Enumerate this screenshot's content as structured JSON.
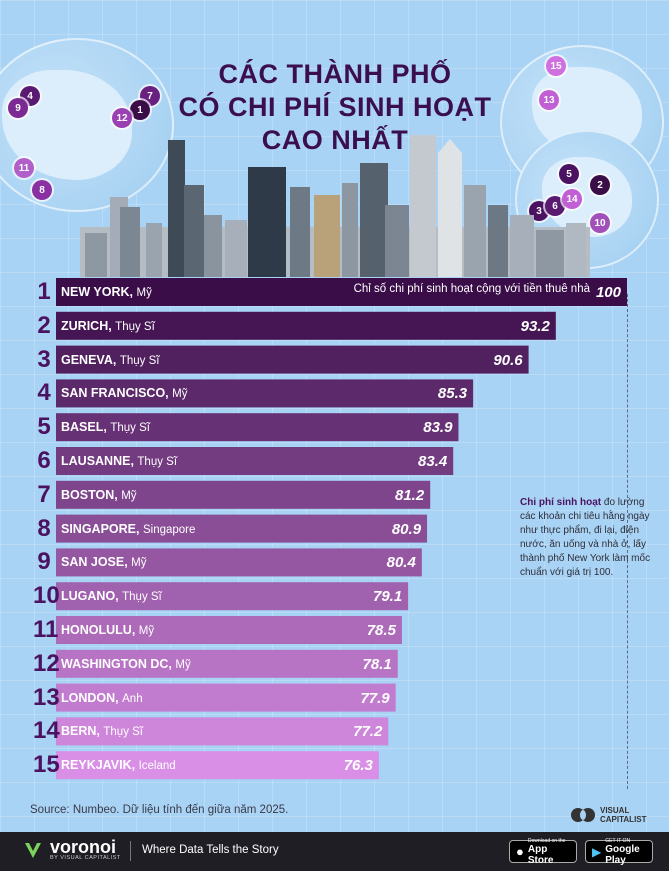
{
  "title_lines": [
    "CÁC THÀNH PHỐ",
    "CÓ CHI PHÍ SINH HOẠT",
    "CAO NHẤT"
  ],
  "colors": {
    "accent": "#4b1260",
    "background": "#a9d3f4",
    "bar_dark": "#3a0d48",
    "bar_light": "#d98fe6"
  },
  "map_pins": [
    "4",
    "9",
    "7",
    "1",
    "12",
    "11",
    "8",
    "15",
    "13",
    "5",
    "2",
    "3",
    "6",
    "14",
    "10"
  ],
  "chart_data": {
    "type": "bar",
    "orientation": "horizontal",
    "value_label": "Chỉ số chi phí sinh hoạt cộng với tiền thuê nhà",
    "reference_value": 100,
    "items": [
      {
        "rank": "1",
        "city": "NEW YORK",
        "country": "Mỹ",
        "value": 100,
        "value_label": "100"
      },
      {
        "rank": "2",
        "city": "ZURICH",
        "country": "Thụy Sĩ",
        "value": 93.2,
        "value_label": "93.2"
      },
      {
        "rank": "3",
        "city": "GENEVA",
        "country": "Thụy Sĩ",
        "value": 90.6,
        "value_label": "90.6"
      },
      {
        "rank": "4",
        "city": "SAN FRANCISCO",
        "country": "Mỹ",
        "value": 85.3,
        "value_label": "85.3"
      },
      {
        "rank": "5",
        "city": "BASEL",
        "country": "Thụy Sĩ",
        "value": 83.9,
        "value_label": "83.9"
      },
      {
        "rank": "6",
        "city": "LAUSANNE",
        "country": "Thụy Sĩ",
        "value": 83.4,
        "value_label": "83.4"
      },
      {
        "rank": "7",
        "city": "BOSTON",
        "country": "Mỹ",
        "value": 81.2,
        "value_label": "81.2"
      },
      {
        "rank": "8",
        "city": "SINGAPORE",
        "country": "Singapore",
        "value": 80.9,
        "value_label": "80.9"
      },
      {
        "rank": "9",
        "city": "SAN JOSE",
        "country": "Mỹ",
        "value": 80.4,
        "value_label": "80.4"
      },
      {
        "rank": "10",
        "city": "LUGANO",
        "country": "Thụy Sĩ",
        "value": 79.1,
        "value_label": "79.1"
      },
      {
        "rank": "11",
        "city": "HONOLULU",
        "country": "Mỹ",
        "value": 78.5,
        "value_label": "78.5"
      },
      {
        "rank": "12",
        "city": "WASHINGTON DC",
        "country": "Mỹ",
        "value": 78.1,
        "value_label": "78.1"
      },
      {
        "rank": "13",
        "city": "LONDON",
        "country": "Anh",
        "value": 77.9,
        "value_label": "77.9"
      },
      {
        "rank": "14",
        "city": "BERN",
        "country": "Thụy Sĩ",
        "value": 77.2,
        "value_label": "77.2"
      },
      {
        "rank": "15",
        "city": "REYKJAVIK",
        "country": "Iceland",
        "value": 76.3,
        "value_label": "76.3"
      }
    ]
  },
  "note": {
    "bold": "Chi phí sinh hoạt",
    "text": " đo lường các khoản chi tiêu hằng ngày như thực phẩm, đi lại, điện nước, ăn uống và nhà ở, lấy thành phố New York làm mốc chuẩn với giá trị 100."
  },
  "source": "Source: Numbeo. Dữ liệu tính đến giữa năm 2025.",
  "vc_logo": [
    "VISUAL",
    "CAPITALIST"
  ],
  "footer": {
    "brand": "voronoi",
    "brand_sub": "BY VISUAL CAPITALIST",
    "tagline": "Where Data Tells the Story",
    "app_store_small": "Download on the",
    "app_store_big": "App Store",
    "play_small": "GET IT ON",
    "play_big": "Google Play"
  }
}
